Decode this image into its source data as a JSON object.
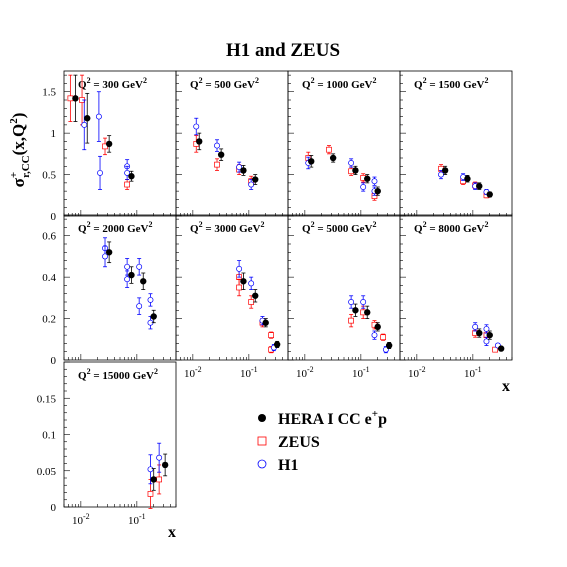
{
  "chart_data": {
    "type": "scatter",
    "title": "H1 and ZEUS",
    "ylabel": "σ+r,CC(x,Q2)",
    "xlabel": "x",
    "x_scale": "log",
    "xlim": [
      0.005,
      0.5
    ],
    "legend": [
      {
        "name": "HERA I CC e+p",
        "color": "#000000",
        "marker": "filled-circle"
      },
      {
        "name": "ZEUS",
        "color": "#ff0000",
        "marker": "open-square"
      },
      {
        "name": "H1",
        "color": "#0000ff",
        "marker": "open-circle"
      }
    ],
    "legend_placement": "bottom-right",
    "rows": [
      {
        "yticks": [
          0,
          0.5,
          1,
          1.5
        ],
        "ylim": [
          0,
          1.75
        ]
      },
      {
        "yticks": [
          0,
          0.2,
          0.4,
          0.6
        ],
        "ylim": [
          0,
          0.7
        ]
      },
      {
        "yticks": [
          0,
          0.05,
          0.1,
          0.15
        ],
        "ylim": [
          0,
          0.2
        ]
      }
    ],
    "panels": [
      {
        "q2": "300",
        "row": 0,
        "col": 0,
        "hera": [
          [
            0.008,
            1.42,
            0.28
          ],
          [
            0.013,
            1.18,
            0.3
          ],
          [
            0.032,
            0.87,
            0.1
          ],
          [
            0.08,
            0.48,
            0.06
          ]
        ],
        "zeus": [
          [
            0.0065,
            1.42,
            0.28
          ],
          [
            0.0105,
            1.4,
            0.3
          ],
          [
            0.027,
            0.84,
            0.1
          ],
          [
            0.067,
            0.38,
            0.06
          ]
        ],
        "h1": [
          [
            0.0115,
            1.1,
            0.3
          ],
          [
            0.021,
            1.2,
            0.3
          ],
          [
            0.022,
            0.52,
            0.2
          ],
          [
            0.067,
            0.6,
            0.08
          ],
          [
            0.067,
            0.52,
            0.08
          ]
        ]
      },
      {
        "q2": "500",
        "row": 0,
        "col": 1,
        "hera": [
          [
            0.013,
            0.9,
            0.1
          ],
          [
            0.032,
            0.74,
            0.07
          ],
          [
            0.08,
            0.55,
            0.06
          ],
          [
            0.13,
            0.44,
            0.06
          ]
        ],
        "zeus": [
          [
            0.0115,
            0.87,
            0.1
          ],
          [
            0.027,
            0.62,
            0.07
          ],
          [
            0.067,
            0.56,
            0.06
          ],
          [
            0.11,
            0.42,
            0.06
          ]
        ],
        "h1": [
          [
            0.0115,
            1.08,
            0.1
          ],
          [
            0.027,
            0.85,
            0.07
          ],
          [
            0.067,
            0.59,
            0.06
          ],
          [
            0.11,
            0.38,
            0.06
          ]
        ]
      },
      {
        "q2": "1000",
        "row": 0,
        "col": 2,
        "hera": [
          [
            0.013,
            0.66,
            0.07
          ],
          [
            0.032,
            0.7,
            0.05
          ],
          [
            0.08,
            0.55,
            0.05
          ],
          [
            0.13,
            0.45,
            0.05
          ],
          [
            0.2,
            0.3,
            0.05
          ]
        ],
        "zeus": [
          [
            0.0115,
            0.7,
            0.07
          ],
          [
            0.027,
            0.8,
            0.05
          ],
          [
            0.067,
            0.54,
            0.05
          ],
          [
            0.11,
            0.46,
            0.05
          ],
          [
            0.175,
            0.24,
            0.05
          ]
        ],
        "h1": [
          [
            0.0115,
            0.64,
            0.07
          ],
          [
            0.067,
            0.64,
            0.05
          ],
          [
            0.11,
            0.35,
            0.05
          ],
          [
            0.175,
            0.42,
            0.05
          ],
          [
            0.175,
            0.3,
            0.05
          ]
        ]
      },
      {
        "q2": "1500",
        "row": 0,
        "col": 3,
        "hera": [
          [
            0.032,
            0.55,
            0.05
          ],
          [
            0.08,
            0.45,
            0.04
          ],
          [
            0.13,
            0.36,
            0.04
          ],
          [
            0.2,
            0.26,
            0.03
          ]
        ],
        "zeus": [
          [
            0.027,
            0.57,
            0.05
          ],
          [
            0.067,
            0.42,
            0.04
          ],
          [
            0.11,
            0.37,
            0.04
          ],
          [
            0.175,
            0.25,
            0.03
          ]
        ],
        "h1": [
          [
            0.027,
            0.5,
            0.05
          ],
          [
            0.067,
            0.47,
            0.04
          ],
          [
            0.11,
            0.36,
            0.04
          ],
          [
            0.175,
            0.29,
            0.03
          ]
        ]
      },
      {
        "q2": "2000",
        "row": 1,
        "col": 0,
        "hera": [
          [
            0.032,
            0.52,
            0.05
          ],
          [
            0.08,
            0.41,
            0.04
          ],
          [
            0.13,
            0.38,
            0.04
          ],
          [
            0.2,
            0.21,
            0.03
          ]
        ],
        "zeus": [],
        "h1": [
          [
            0.027,
            0.54,
            0.05
          ],
          [
            0.027,
            0.5,
            0.05
          ],
          [
            0.067,
            0.45,
            0.04
          ],
          [
            0.067,
            0.39,
            0.04
          ],
          [
            0.11,
            0.45,
            0.04
          ],
          [
            0.11,
            0.26,
            0.04
          ],
          [
            0.175,
            0.29,
            0.03
          ],
          [
            0.175,
            0.18,
            0.03
          ]
        ]
      },
      {
        "q2": "3000",
        "row": 1,
        "col": 1,
        "hera": [
          [
            0.08,
            0.38,
            0.04
          ],
          [
            0.13,
            0.31,
            0.03
          ],
          [
            0.2,
            0.18,
            0.02
          ],
          [
            0.32,
            0.075,
            0.015
          ]
        ],
        "zeus": [
          [
            0.067,
            0.4,
            0.04
          ],
          [
            0.067,
            0.35,
            0.04
          ],
          [
            0.11,
            0.28,
            0.03
          ],
          [
            0.175,
            0.18,
            0.02
          ],
          [
            0.25,
            0.12,
            0.015
          ],
          [
            0.25,
            0.05,
            0.015
          ]
        ],
        "h1": [
          [
            0.067,
            0.44,
            0.04
          ],
          [
            0.11,
            0.37,
            0.03
          ],
          [
            0.175,
            0.19,
            0.02
          ],
          [
            0.28,
            0.06,
            0.015
          ]
        ]
      },
      {
        "q2": "5000",
        "row": 1,
        "col": 2,
        "hera": [
          [
            0.08,
            0.24,
            0.03
          ],
          [
            0.13,
            0.23,
            0.03
          ],
          [
            0.2,
            0.16,
            0.02
          ],
          [
            0.32,
            0.07,
            0.015
          ]
        ],
        "zeus": [
          [
            0.067,
            0.19,
            0.03
          ],
          [
            0.11,
            0.23,
            0.03
          ],
          [
            0.175,
            0.17,
            0.02
          ],
          [
            0.25,
            0.11,
            0.015
          ]
        ],
        "h1": [
          [
            0.067,
            0.28,
            0.03
          ],
          [
            0.11,
            0.28,
            0.03
          ],
          [
            0.175,
            0.12,
            0.02
          ],
          [
            0.28,
            0.05,
            0.015
          ]
        ]
      },
      {
        "q2": "8000",
        "row": 1,
        "col": 3,
        "hera": [
          [
            0.13,
            0.13,
            0.02
          ],
          [
            0.2,
            0.12,
            0.02
          ],
          [
            0.32,
            0.055,
            0.01
          ]
        ],
        "zeus": [
          [
            0.11,
            0.13,
            0.02
          ],
          [
            0.175,
            0.12,
            0.02
          ],
          [
            0.25,
            0.05,
            0.01
          ]
        ],
        "h1": [
          [
            0.11,
            0.16,
            0.02
          ],
          [
            0.175,
            0.15,
            0.02
          ],
          [
            0.175,
            0.09,
            0.02
          ],
          [
            0.28,
            0.07,
            0.01
          ]
        ]
      },
      {
        "q2": "15000",
        "row": 2,
        "col": 0,
        "hera": [
          [
            0.2,
            0.038,
            0.015
          ],
          [
            0.32,
            0.058,
            0.015
          ]
        ],
        "zeus": [
          [
            0.175,
            0.018,
            0.02
          ],
          [
            0.25,
            0.038,
            0.02
          ]
        ],
        "h1": [
          [
            0.175,
            0.052,
            0.02
          ],
          [
            0.25,
            0.068,
            0.02
          ]
        ]
      }
    ]
  },
  "labels": {
    "title": "H1 and ZEUS",
    "y_sigma": "σ",
    "y_sub": "r,CC",
    "y_sup": "+",
    "y_args": "(x,Q",
    "y_args_sup": "2",
    "y_args_end": ")",
    "x_label": "x",
    "q2_prefix": "Q",
    "q2_sup": "2",
    "q2_unit": "GeV",
    "tick_1e2": "10",
    "tick_1e2_exp": "-2",
    "tick_1e1": "10",
    "tick_1e1_exp": "-1",
    "legend_hera": "HERA I CC e",
    "legend_hera_sup": "+",
    "legend_hera_end": "p",
    "legend_zeus": "ZEUS",
    "legend_h1": "H1"
  }
}
